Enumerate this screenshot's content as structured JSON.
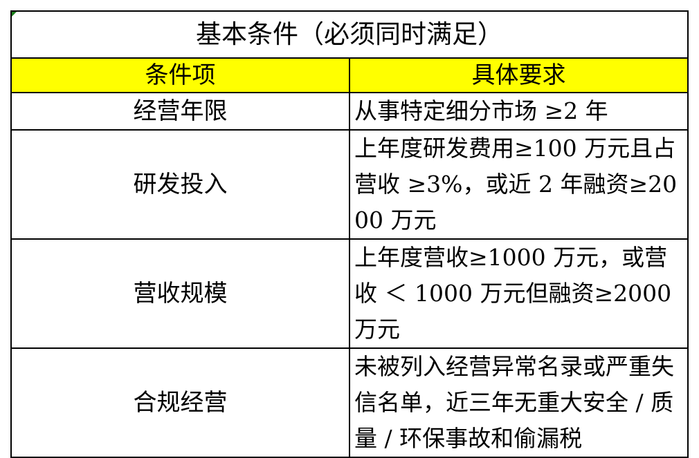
{
  "title": "基本条件（必须同时满足）",
  "header": {
    "col1": "条件项",
    "col2": "具体要求"
  },
  "rows": [
    {
      "item": "经营年限",
      "requirement": "从事特定细分市场 ≥2 年"
    },
    {
      "item": "研发投入",
      "requirement": "上年度研发费用≥100 万元且占营收 ≥3%，或近 2 年融资≥2000 万元"
    },
    {
      "item": "营收规模",
      "requirement": "上年度营收≥1000 万元，或营收 ＜ 1000 万元但融资≥2000 万元"
    },
    {
      "item": "合规经营",
      "requirement": "未被列入经营异常名录或严重失信名单，近三年无重大安全 / 质量 / 环保事故和偷漏税"
    }
  ],
  "colors": {
    "header_bg": "#ffff00",
    "border": "#000000",
    "corner_marker": "#1a7f1a"
  }
}
